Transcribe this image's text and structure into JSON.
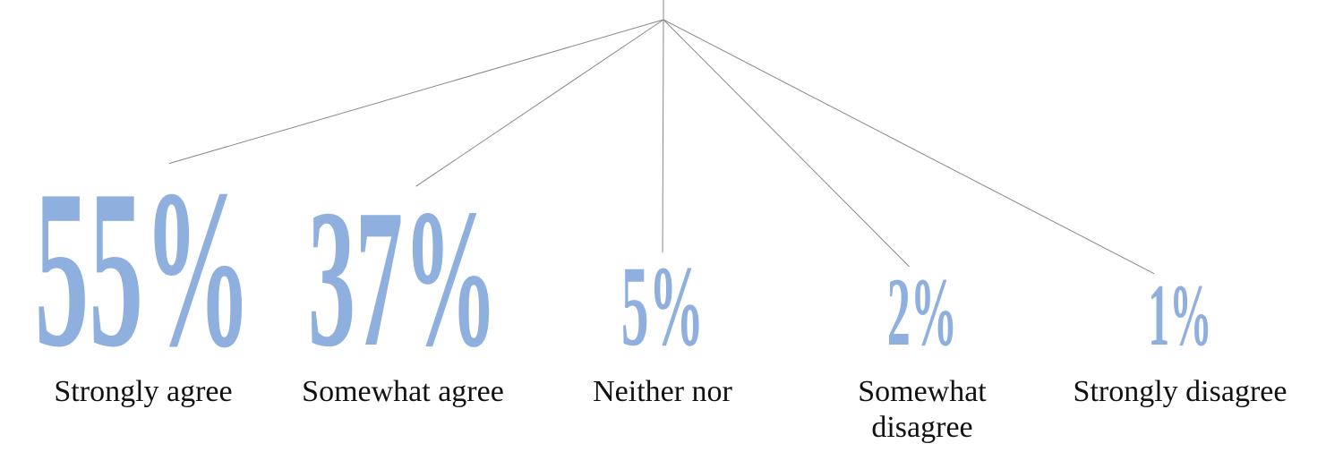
{
  "chart_data": {
    "type": "stat-tree",
    "categories": [
      "Strongly agree",
      "Somewhat agree",
      "Neither nor",
      "Somewhat disagree",
      "Strongly disagree"
    ],
    "values": [
      55,
      37,
      5,
      2,
      1
    ],
    "value_labels": [
      "55%",
      "37%",
      "5%",
      "2%",
      "1%"
    ],
    "color": "#8fb0de"
  }
}
